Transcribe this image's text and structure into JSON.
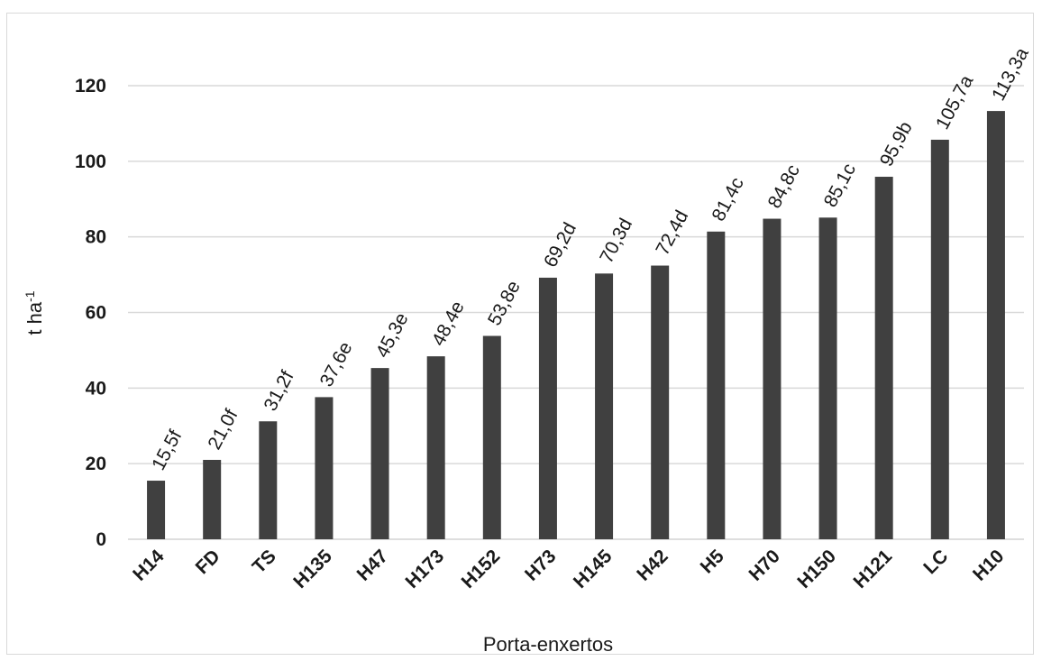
{
  "chart_data": {
    "type": "bar",
    "categories": [
      "H14",
      "FD",
      "TS",
      "H135",
      "H47",
      "H173",
      "H152",
      "H73",
      "H145",
      "H42",
      "H5",
      "H70",
      "H150",
      "H121",
      "LC",
      "H10"
    ],
    "values": [
      15.5,
      21.0,
      31.2,
      37.6,
      45.3,
      48.4,
      53.8,
      69.2,
      70.3,
      72.4,
      81.4,
      84.8,
      85.1,
      95.9,
      105.7,
      113.3
    ],
    "data_labels": [
      "15,5f",
      "21,0f",
      "31,2f",
      "37,6e",
      "45,3e",
      "48,4e",
      "53,8e",
      "69,2d",
      "70,3d",
      "72,4d",
      "81,4c",
      "84,8c",
      "85,1c",
      "95,9b",
      "105,7a",
      "113,3a"
    ],
    "title": "",
    "xlabel": "Porta-enxertos",
    "ylabel": {
      "base": "t ha",
      "sup": "-1"
    },
    "ylim": [
      0,
      120
    ],
    "yticks": [
      0,
      20,
      40,
      60,
      80,
      100,
      120
    ],
    "grid": true,
    "bar_color": "#404040",
    "grid_color": "#d9d9d9"
  }
}
